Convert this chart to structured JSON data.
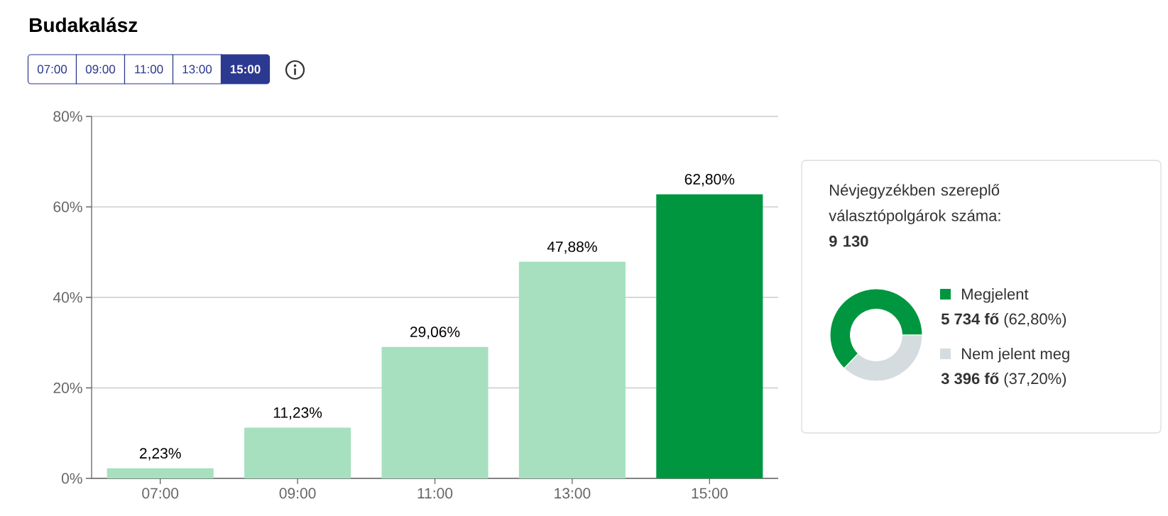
{
  "chart_data": [
    {
      "type": "bar",
      "title": "Budakalász",
      "annotations": [
        "07:00",
        "09:00",
        "11:00",
        "13:00",
        "15:00"
      ],
      "categories": [
        "07:00",
        "09:00",
        "11:00",
        "13:00",
        "15:00"
      ],
      "values": [
        2.23,
        11.23,
        29.06,
        47.88,
        62.8
      ],
      "colors": [
        "#a6e0bf",
        "#a6e0bf",
        "#a6e0bf",
        "#a6e0bf",
        "#00963f"
      ],
      "value_labels": [
        "2,23%",
        "11,23%",
        "29,06%",
        "47,88%",
        "62,80%"
      ],
      "ylim": [
        0,
        80
      ],
      "yticks": [
        {
          "value": 0,
          "label": "0%"
        },
        {
          "value": 20,
          "label": "20%"
        },
        {
          "value": 40,
          "label": "40%"
        },
        {
          "value": 60,
          "label": "60%"
        },
        {
          "value": 80,
          "label": "80%"
        }
      ],
      "grid": "y"
    },
    {
      "type": "donut",
      "title": "Névjegyzékben szereplő választópolgárok száma:",
      "subtitle": "9 130",
      "categories": [
        "Megjelent",
        "Nem jelent meg"
      ],
      "values": [
        5734,
        3396
      ],
      "colors": [
        "#00963f",
        "#d5dcdf"
      ],
      "value_labels": [
        "**5 734 fő** (62,80%)",
        "**3 396 fő** (37,20%)"
      ],
      "legend": "right"
    }
  ]
}
